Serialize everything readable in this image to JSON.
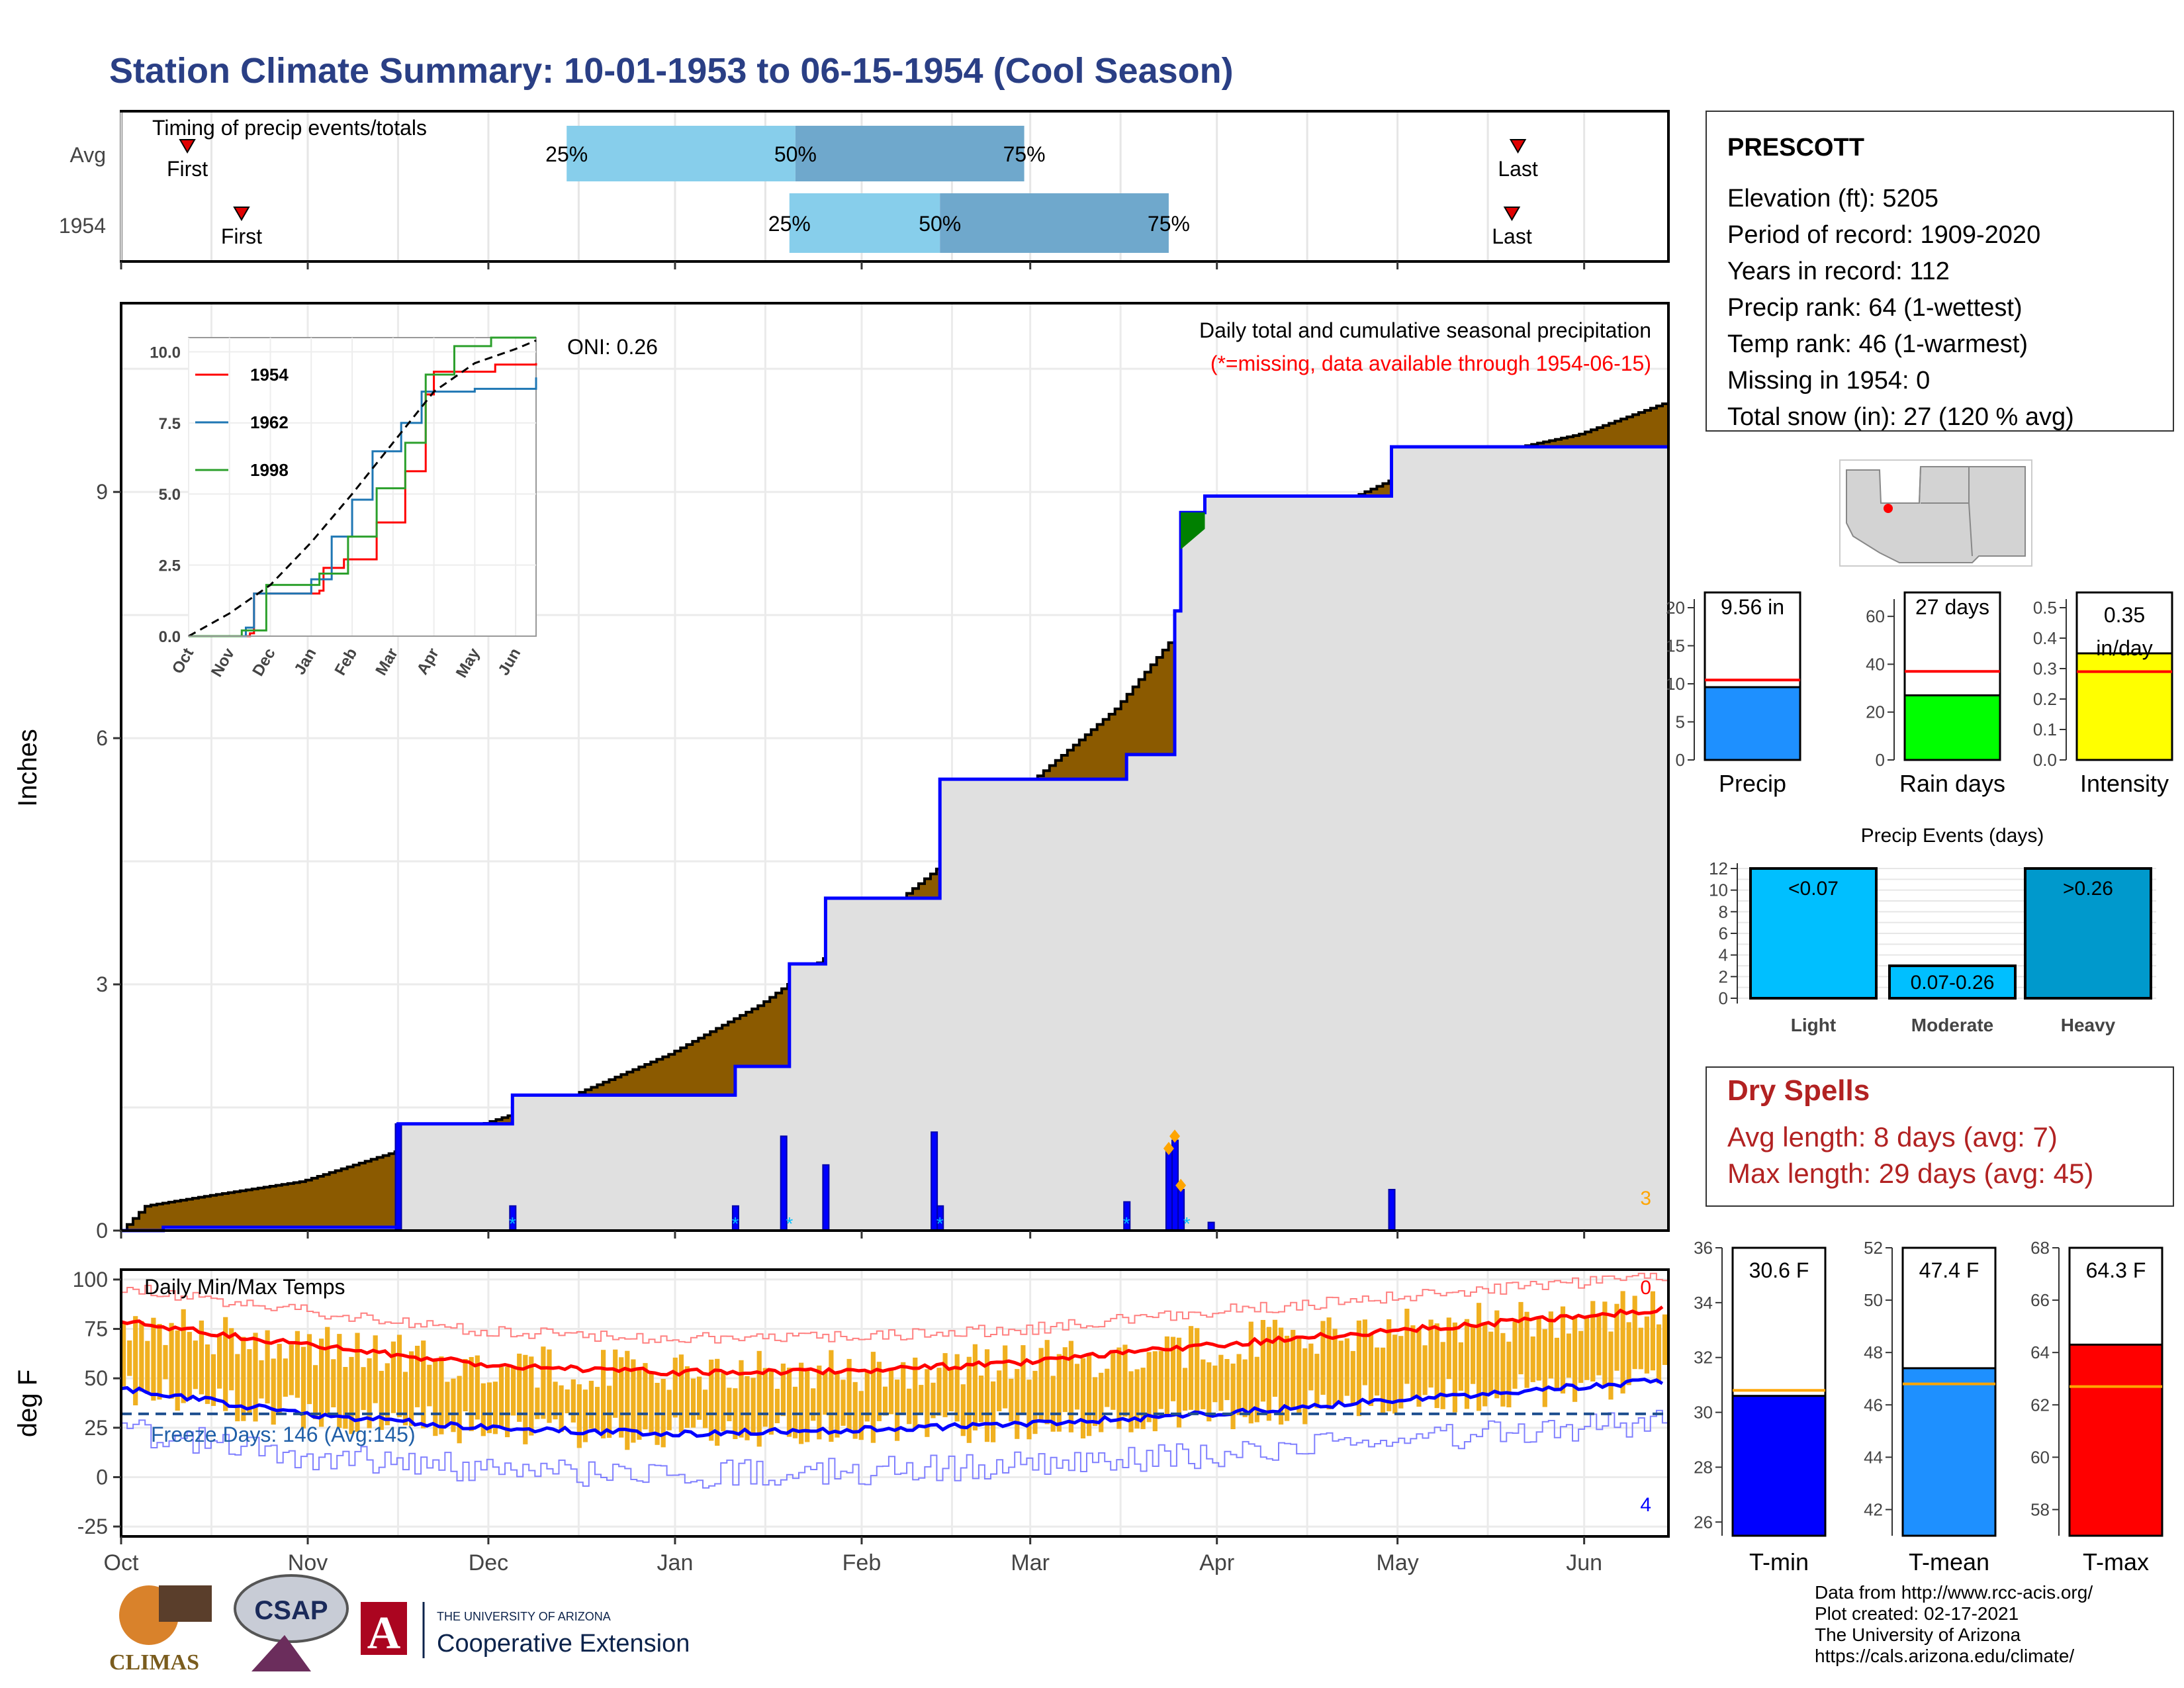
{
  "title": "Station Climate Summary: 10-01-1953 to 06-15-1954 (Cool Season)",
  "months": [
    "Oct",
    "Nov",
    "Dec",
    "Jan",
    "Feb",
    "Mar",
    "Apr",
    "May",
    "Jun"
  ],
  "timing": {
    "title": "Timing of precip events/totals",
    "rows": [
      {
        "label": "Avg",
        "first_label": "First",
        "last_label": "Last",
        "first_date": "1953-10-12",
        "last_date": "1954-05-21",
        "p25_date": "1953-12-14",
        "p50_date": "1954-01-21",
        "p75_date": "1954-02-28",
        "p25": "25%",
        "p50": "50%",
        "p75": "75%"
      },
      {
        "label": "1954",
        "first_label": "First",
        "last_label": "Last",
        "first_date": "1953-10-21",
        "last_date": "1954-05-20",
        "p25_date": "1954-01-20",
        "p50_date": "1954-02-14",
        "p75_date": "1954-03-24",
        "p25": "25%",
        "p50": "50%",
        "p75": "75%"
      }
    ]
  },
  "station": {
    "name": "PRESCOTT",
    "lines": [
      "Elevation (ft): 5205",
      "Period of record: 1909-2020",
      "Years in record: 112",
      "Precip rank: 64 (1-wettest)",
      "Temp rank: 46 (1-warmest)",
      "Missing in 1954: 0",
      "Total snow (in): 27 (120 % avg)"
    ]
  },
  "colors": {
    "title": "#2a3f85",
    "brown": "#8b5a00",
    "gray_fill": "#e0e0e0",
    "blue_line": "#0000ff",
    "light_blue": "#87ceeb",
    "mid_blue": "#6fa8cc",
    "red": "#ff0000",
    "orange": "#ffa500",
    "temp_bar": "#f0b020",
    "dry_red": "#b22222",
    "green": "#00ff00",
    "yellow": "#ffff00",
    "precip_blue": "#1e90ff",
    "light_cyan": "#00bfff",
    "heavy_blue": "#0099cc"
  },
  "main_chart": {
    "ylabel": "Inches",
    "title": "Daily total and cumulative seasonal precipitation",
    "missing_note": "(*=missing, data available through 1954-06-15)",
    "oni": "ONI: 0.26",
    "corner_count": "3",
    "yticks": [
      "0",
      "3",
      "6",
      "9"
    ]
  },
  "chart_data": [
    {
      "type": "area",
      "title": "Daily total and cumulative seasonal precipitation",
      "ylabel": "Inches",
      "ylim": [
        0,
        11.3
      ],
      "series": [
        {
          "name": "Average cumulative (brown top)",
          "points": [
            [
              "1953-10-01",
              0.0
            ],
            [
              "1953-10-05",
              0.3
            ],
            [
              "1953-10-15",
              0.42
            ],
            [
              "1953-10-31",
              0.6
            ],
            [
              "1953-11-15",
              0.95
            ],
            [
              "1953-11-30",
              1.3
            ],
            [
              "1953-12-15",
              1.65
            ],
            [
              "1953-12-31",
              2.15
            ],
            [
              "1954-01-15",
              2.75
            ],
            [
              "1954-01-31",
              3.6
            ],
            [
              "1954-02-15",
              4.5
            ],
            [
              "1954-02-28",
              5.4
            ],
            [
              "1954-03-15",
              6.35
            ],
            [
              "1954-03-31",
              7.8
            ],
            [
              "1954-04-15",
              8.65
            ],
            [
              "1954-04-30",
              9.15
            ],
            [
              "1954-05-15",
              9.45
            ],
            [
              "1954-05-31",
              9.7
            ],
            [
              "1954-06-15",
              10.1
            ]
          ]
        },
        {
          "name": "1954 cumulative (blue line)",
          "points": [
            [
              "1953-10-01",
              0.0
            ],
            [
              "1953-10-08",
              0.0
            ],
            [
              "1953-10-08",
              0.04
            ],
            [
              "1953-11-16",
              0.04
            ],
            [
              "1953-11-16",
              1.3
            ],
            [
              "1953-12-05",
              1.3
            ],
            [
              "1953-12-05",
              1.65
            ],
            [
              "1954-01-11",
              1.65
            ],
            [
              "1954-01-11",
              2.0
            ],
            [
              "1954-01-20",
              2.0
            ],
            [
              "1954-01-20",
              3.25
            ],
            [
              "1954-01-26",
              3.25
            ],
            [
              "1954-01-26",
              4.05
            ],
            [
              "1954-02-14",
              4.05
            ],
            [
              "1954-02-14",
              5.5
            ],
            [
              "1954-03-17",
              5.5
            ],
            [
              "1954-03-17",
              5.8
            ],
            [
              "1954-03-25",
              5.8
            ],
            [
              "1954-03-25",
              7.55
            ],
            [
              "1954-03-26",
              7.55
            ],
            [
              "1954-03-26",
              8.75
            ],
            [
              "1954-03-30",
              8.75
            ],
            [
              "1954-03-30",
              8.95
            ],
            [
              "1954-04-30",
              8.95
            ],
            [
              "1954-04-30",
              9.55
            ],
            [
              "1954-06-15",
              9.55
            ]
          ]
        }
      ]
    },
    {
      "type": "bar",
      "title": "Daily precipitation (1954)",
      "points": [
        [
          "1953-11-16",
          1.3
        ],
        [
          "1953-12-05",
          0.3
        ],
        [
          "1954-01-11",
          0.3
        ],
        [
          "1954-01-19",
          1.15
        ],
        [
          "1954-01-26",
          0.8
        ],
        [
          "1954-02-13",
          1.2
        ],
        [
          "1954-02-14",
          0.3
        ],
        [
          "1954-03-17",
          0.35
        ],
        [
          "1954-03-24",
          1.0
        ],
        [
          "1954-03-25",
          1.1
        ],
        [
          "1954-03-26",
          0.5
        ],
        [
          "1954-03-31",
          0.1
        ],
        [
          "1954-04-30",
          0.5
        ]
      ]
    },
    {
      "type": "line",
      "title": "Cumulative precipitation inset",
      "ylim": [
        0,
        10.5
      ],
      "yticks": [
        "0.0",
        "2.5",
        "5.0",
        "7.5",
        "10.0"
      ],
      "xticks": [
        "Oct",
        "Nov",
        "Dec",
        "Jan",
        "Feb",
        "Mar",
        "Apr",
        "May",
        "Jun"
      ],
      "series": [
        {
          "name": "1954",
          "color": "#ff0000",
          "points": [
            [
              0,
              0
            ],
            [
              1.5,
              0.1
            ],
            [
              1.6,
              1.5
            ],
            [
              3.2,
              1.6
            ],
            [
              3.3,
              2.4
            ],
            [
              3.8,
              2.7
            ],
            [
              4.6,
              4.0
            ],
            [
              5.3,
              5.8
            ],
            [
              5.8,
              8.5
            ],
            [
              6.0,
              9.3
            ],
            [
              7.5,
              9.55
            ],
            [
              8.5,
              9.6
            ]
          ]
        },
        {
          "name": "1962",
          "color": "#1f77b4",
          "points": [
            [
              0,
              0
            ],
            [
              1.4,
              0.3
            ],
            [
              1.6,
              1.5
            ],
            [
              3.0,
              2.0
            ],
            [
              3.5,
              3.5
            ],
            [
              4.0,
              4.8
            ],
            [
              4.5,
              6.5
            ],
            [
              5.2,
              7.5
            ],
            [
              5.7,
              8.6
            ],
            [
              7.0,
              8.7
            ],
            [
              8.5,
              9.1
            ]
          ]
        },
        {
          "name": "1998",
          "color": "#2ca02c",
          "points": [
            [
              0,
              0
            ],
            [
              1.3,
              0.2
            ],
            [
              1.9,
              1.8
            ],
            [
              3.2,
              2.2
            ],
            [
              3.9,
              3.5
            ],
            [
              4.6,
              5.2
            ],
            [
              5.3,
              6.8
            ],
            [
              5.8,
              9.2
            ],
            [
              6.5,
              10.2
            ],
            [
              7.4,
              10.5
            ],
            [
              8.5,
              10.5
            ]
          ]
        },
        {
          "name": "Average",
          "color": "#000000",
          "dashed": true,
          "points": [
            [
              0,
              0
            ],
            [
              1.0,
              0.8
            ],
            [
              2.0,
              1.8
            ],
            [
              3.0,
              3.3
            ],
            [
              4.0,
              5.0
            ],
            [
              5.0,
              6.8
            ],
            [
              6.0,
              8.6
            ],
            [
              7.0,
              9.6
            ],
            [
              8.0,
              10.1
            ],
            [
              8.5,
              10.4
            ]
          ]
        }
      ]
    },
    {
      "type": "bar",
      "title": "Daily Min/Max Temps",
      "ylabel": "deg F",
      "ylim": [
        -25,
        100
      ],
      "yticks": [
        "100",
        "75",
        "50",
        "25",
        "0",
        "-25"
      ],
      "series": [
        {
          "name": "Average max (red)",
          "points": [
            [
              "1953-10-01",
              79
            ],
            [
              "1953-11-01",
              67
            ],
            [
              "1953-12-01",
              57
            ],
            [
              "1954-01-01",
              53
            ],
            [
              "1954-02-01",
              54
            ],
            [
              "1954-03-01",
              58
            ],
            [
              "1954-04-01",
              67
            ],
            [
              "1954-05-01",
              74
            ],
            [
              "1954-06-15",
              85
            ]
          ]
        },
        {
          "name": "Average min (blue)",
          "points": [
            [
              "1953-10-01",
              45
            ],
            [
              "1953-11-01",
              32
            ],
            [
              "1953-12-01",
              25
            ],
            [
              "1954-01-01",
              22
            ],
            [
              "1954-02-01",
              24
            ],
            [
              "1954-03-01",
              27
            ],
            [
              "1954-04-01",
              32
            ],
            [
              "1954-05-01",
              39
            ],
            [
              "1954-06-15",
              49
            ]
          ]
        }
      ]
    },
    {
      "type": "bar",
      "title": "Seasonal summary",
      "categories": [
        "Precip",
        "Rain days",
        "Intensity"
      ],
      "values": [
        9.56,
        27,
        0.35
      ],
      "averages": [
        10.5,
        37,
        0.29
      ]
    },
    {
      "type": "bar",
      "title": "Precip Events (days)",
      "categories": [
        "Light",
        "Moderate",
        "Heavy"
      ],
      "values": [
        12,
        3,
        12
      ],
      "ylim": [
        0,
        12
      ]
    },
    {
      "type": "bar",
      "title": "Temperature summary",
      "categories": [
        "T-min",
        "T-mean",
        "T-max"
      ],
      "values": [
        30.6,
        47.4,
        64.3
      ],
      "averages": [
        30.8,
        46.8,
        62.7
      ]
    }
  ],
  "temps": {
    "title": "Daily Min/Max Temps",
    "ylabel": "deg F",
    "freeze_label": "Freeze Days: 146 (Avg:145)",
    "freeze_value": 32,
    "count_top": "0",
    "count_bottom": "4"
  },
  "summary": {
    "precip": {
      "label": "Precip",
      "value_text": "9.56 in",
      "value": 9.56,
      "avg": 10.5,
      "max": 22,
      "ticks": [
        "0",
        "5",
        "10",
        "15",
        "20"
      ]
    },
    "raindays": {
      "label": "Rain days",
      "value_text": "27 days",
      "value": 27,
      "avg": 37,
      "max": 70,
      "ticks": [
        "0",
        "20",
        "40",
        "60"
      ]
    },
    "intensity": {
      "label": "Intensity",
      "value_text": "0.35",
      "value_text2": "in/day",
      "value": 0.35,
      "avg": 0.29,
      "max": 0.55,
      "ticks": [
        "0.0",
        "0.1",
        "0.2",
        "0.3",
        "0.4",
        "0.5"
      ]
    }
  },
  "events": {
    "title": "Precip Events (days)",
    "bars": [
      {
        "label": "Light",
        "bar_label": "<0.07",
        "value": 12
      },
      {
        "label": "Moderate",
        "bar_label": "0.07-0.26",
        "value": 3
      },
      {
        "label": "Heavy",
        "bar_label": ">0.26",
        "value": 12
      }
    ],
    "ticks": [
      "0",
      "2",
      "4",
      "6",
      "8",
      "10",
      "12"
    ]
  },
  "dry": {
    "title": "Dry Spells",
    "avg_line": "Avg length: 8 days (avg: 7)",
    "max_line": "Max length: 29 days (avg: 45)"
  },
  "tempsummary": {
    "tmin": {
      "label": "T-min",
      "value_text": "30.6 F",
      "value": 30.6,
      "avg": 30.8,
      "lo": 25.5,
      "hi": 36,
      "ticks": [
        "26",
        "28",
        "30",
        "32",
        "34",
        "36"
      ]
    },
    "tmean": {
      "label": "T-mean",
      "value_text": "47.4 F",
      "value": 47.4,
      "avg": 46.8,
      "lo": 41,
      "hi": 52,
      "ticks": [
        "42",
        "44",
        "46",
        "48",
        "50",
        "52"
      ]
    },
    "tmax": {
      "label": "T-max",
      "value_text": "64.3 F",
      "value": 64.3,
      "avg": 62.7,
      "lo": 57,
      "hi": 68,
      "ticks": [
        "58",
        "60",
        "62",
        "64",
        "66",
        "68"
      ]
    }
  },
  "logos": {
    "climas": "CLIMAS",
    "csap": "CSAP",
    "uni": "THE UNIVERSITY OF ARIZONA",
    "ext": "Cooperative Extension",
    "a_letter": "A"
  },
  "footer": [
    "Data from http://www.rcc-acis.org/",
    "Plot created: 02-17-2021",
    "The University of Arizona",
    "https://cals.arizona.edu/climate/"
  ]
}
